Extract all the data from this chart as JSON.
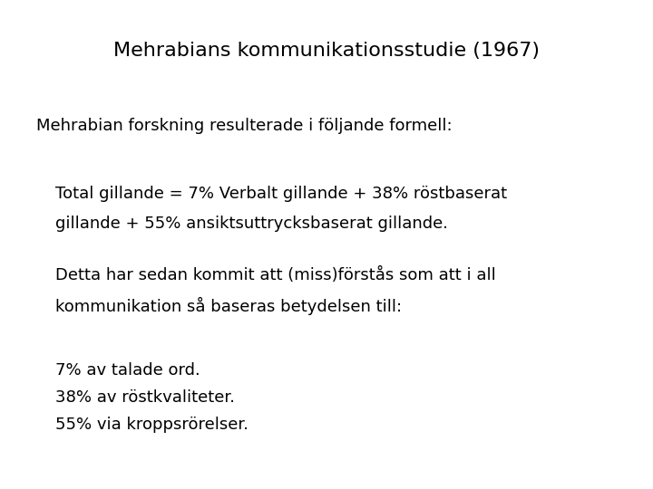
{
  "title": "Mehrabians kommunikationsstudie (1967)",
  "subtitle": "Mehrabian forskning resulterade i följande formell:",
  "para1_line1": "Total gillande = 7% Verbalt gillande + 38% röstbaserat",
  "para1_line2": "gillande + 55% ansiktsuttrycksbaserat gillande.",
  "para2_line1": "Detta har sedan kommit att (miss)förstås som att i all",
  "para2_line2": "kommunikation så baseras betydelsen till:",
  "bullet1": "7% av talade ord.",
  "bullet2": "38% av röstkvaliteter.",
  "bullet3": "55% via kroppsrörelser.",
  "bg_color": "#ffffff",
  "text_color": "#000000",
  "title_fontsize": 16,
  "body_fontsize": 13
}
